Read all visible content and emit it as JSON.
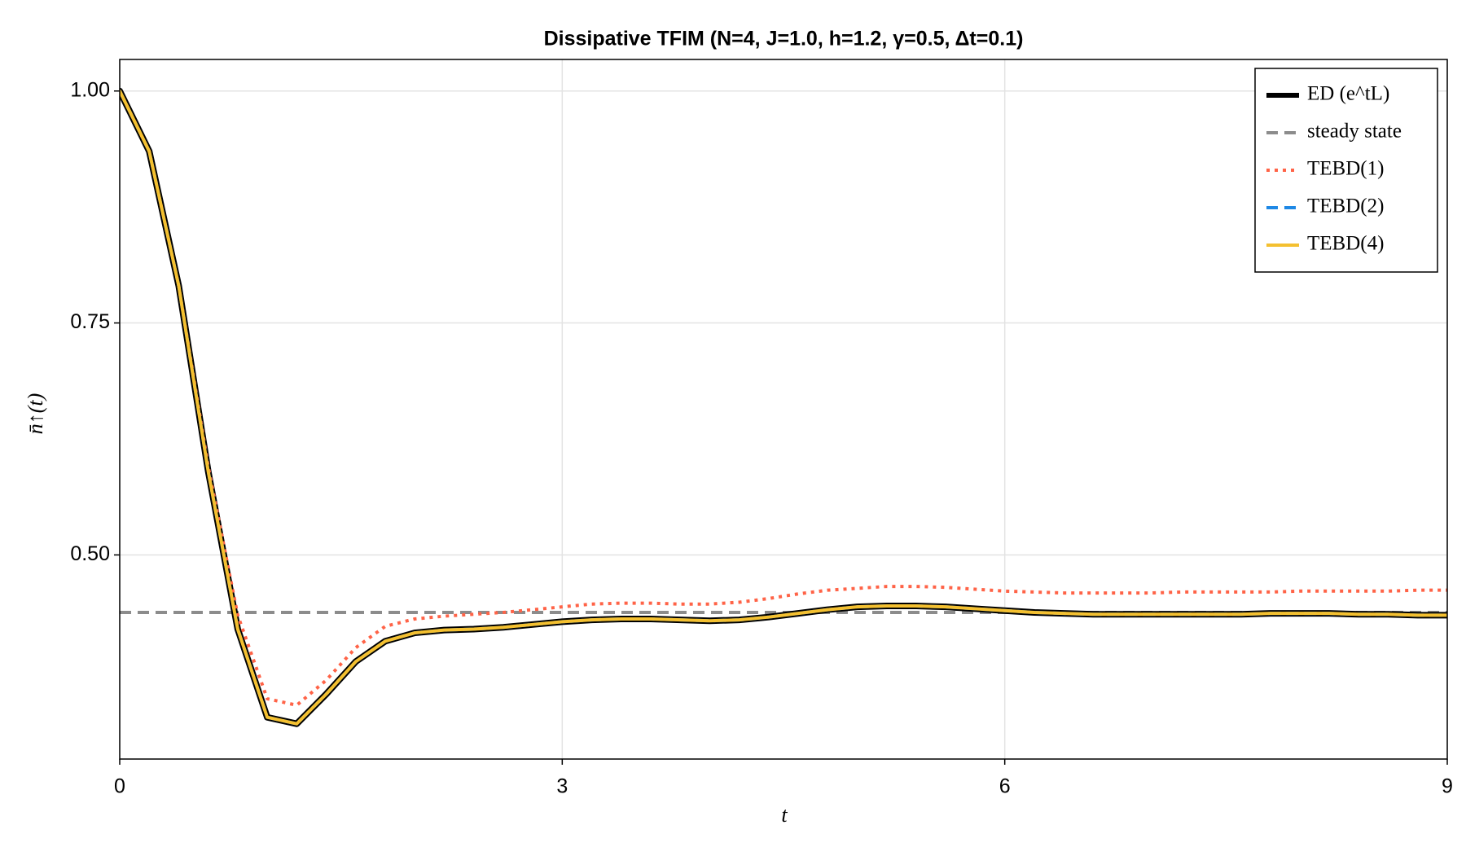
{
  "chart_data": {
    "type": "line",
    "title": "Dissipative TFIM (N=4, J=1.0, h=1.2, γ=0.5, Δt=0.1)",
    "x_label": "t",
    "y_label": "n̄↑(t)",
    "x": [
      0,
      0.2,
      0.4,
      0.6,
      0.8,
      1.0,
      1.2,
      1.4,
      1.6,
      1.8,
      2.0,
      2.2,
      2.4,
      2.6,
      2.8,
      3.0,
      3.2,
      3.4,
      3.6,
      3.8,
      4.0,
      4.2,
      4.4,
      4.6,
      4.8,
      5.0,
      5.2,
      5.4,
      5.6,
      5.8,
      6.0,
      6.2,
      6.4,
      6.6,
      6.8,
      7.0,
      7.2,
      7.4,
      7.6,
      7.8,
      8.0,
      8.2,
      8.4,
      8.6,
      8.8,
      9.0
    ],
    "series": [
      {
        "name": "ED (e^tL)",
        "color": "#000000",
        "style": "solid",
        "width": 8,
        "values": [
          1.0,
          0.935,
          0.79,
          0.59,
          0.42,
          0.325,
          0.318,
          0.35,
          0.385,
          0.407,
          0.416,
          0.419,
          0.42,
          0.422,
          0.425,
          0.428,
          0.43,
          0.431,
          0.431,
          0.43,
          0.429,
          0.43,
          0.433,
          0.437,
          0.441,
          0.444,
          0.445,
          0.445,
          0.444,
          0.442,
          0.44,
          0.438,
          0.437,
          0.436,
          0.436,
          0.436,
          0.436,
          0.436,
          0.436,
          0.437,
          0.437,
          0.437,
          0.436,
          0.436,
          0.435,
          0.435
        ]
      },
      {
        "name": "TEBD(1)",
        "color": "#ff6347",
        "style": "dotted",
        "width": 4,
        "values": [
          1.0,
          0.935,
          0.79,
          0.595,
          0.435,
          0.345,
          0.338,
          0.365,
          0.4,
          0.423,
          0.431,
          0.434,
          0.436,
          0.438,
          0.441,
          0.444,
          0.447,
          0.448,
          0.448,
          0.447,
          0.447,
          0.449,
          0.453,
          0.458,
          0.462,
          0.464,
          0.466,
          0.466,
          0.465,
          0.463,
          0.461,
          0.46,
          0.459,
          0.459,
          0.459,
          0.459,
          0.46,
          0.46,
          0.46,
          0.46,
          0.461,
          0.461,
          0.461,
          0.461,
          0.462,
          0.462
        ]
      },
      {
        "name": "TEBD(2)",
        "color": "#1e88e5",
        "style": "dashed",
        "width": 4,
        "values": [
          1.0,
          0.935,
          0.79,
          0.59,
          0.42,
          0.325,
          0.318,
          0.35,
          0.385,
          0.407,
          0.416,
          0.419,
          0.42,
          0.422,
          0.425,
          0.428,
          0.43,
          0.431,
          0.431,
          0.43,
          0.429,
          0.43,
          0.433,
          0.437,
          0.441,
          0.444,
          0.445,
          0.445,
          0.444,
          0.442,
          0.44,
          0.438,
          0.437,
          0.436,
          0.436,
          0.436,
          0.436,
          0.436,
          0.436,
          0.437,
          0.437,
          0.437,
          0.436,
          0.436,
          0.435,
          0.435
        ]
      },
      {
        "name": "TEBD(4)",
        "color": "#f4c030",
        "style": "solid",
        "width": 4,
        "values": [
          1.0,
          0.935,
          0.79,
          0.59,
          0.42,
          0.325,
          0.318,
          0.35,
          0.385,
          0.407,
          0.416,
          0.419,
          0.42,
          0.422,
          0.425,
          0.428,
          0.43,
          0.431,
          0.431,
          0.43,
          0.429,
          0.43,
          0.433,
          0.437,
          0.441,
          0.444,
          0.445,
          0.445,
          0.444,
          0.442,
          0.44,
          0.438,
          0.437,
          0.436,
          0.436,
          0.436,
          0.436,
          0.436,
          0.436,
          0.437,
          0.437,
          0.437,
          0.436,
          0.436,
          0.435,
          0.435
        ]
      }
    ],
    "hlines": [
      {
        "name": "steady state",
        "color": "#8c8c8c",
        "style": "dashed",
        "width": 4,
        "value": 0.438
      }
    ],
    "xlim": [
      0,
      9
    ],
    "ylim": [
      0.28,
      1.034
    ],
    "xticks": [
      0,
      3,
      6,
      9
    ],
    "yticks": [
      {
        "value": 0.5,
        "label": "0.50"
      },
      {
        "value": 0.75,
        "label": "0.75"
      },
      {
        "value": 1,
        "label": "1.00"
      }
    ],
    "grid": true,
    "legend": "top-right"
  }
}
